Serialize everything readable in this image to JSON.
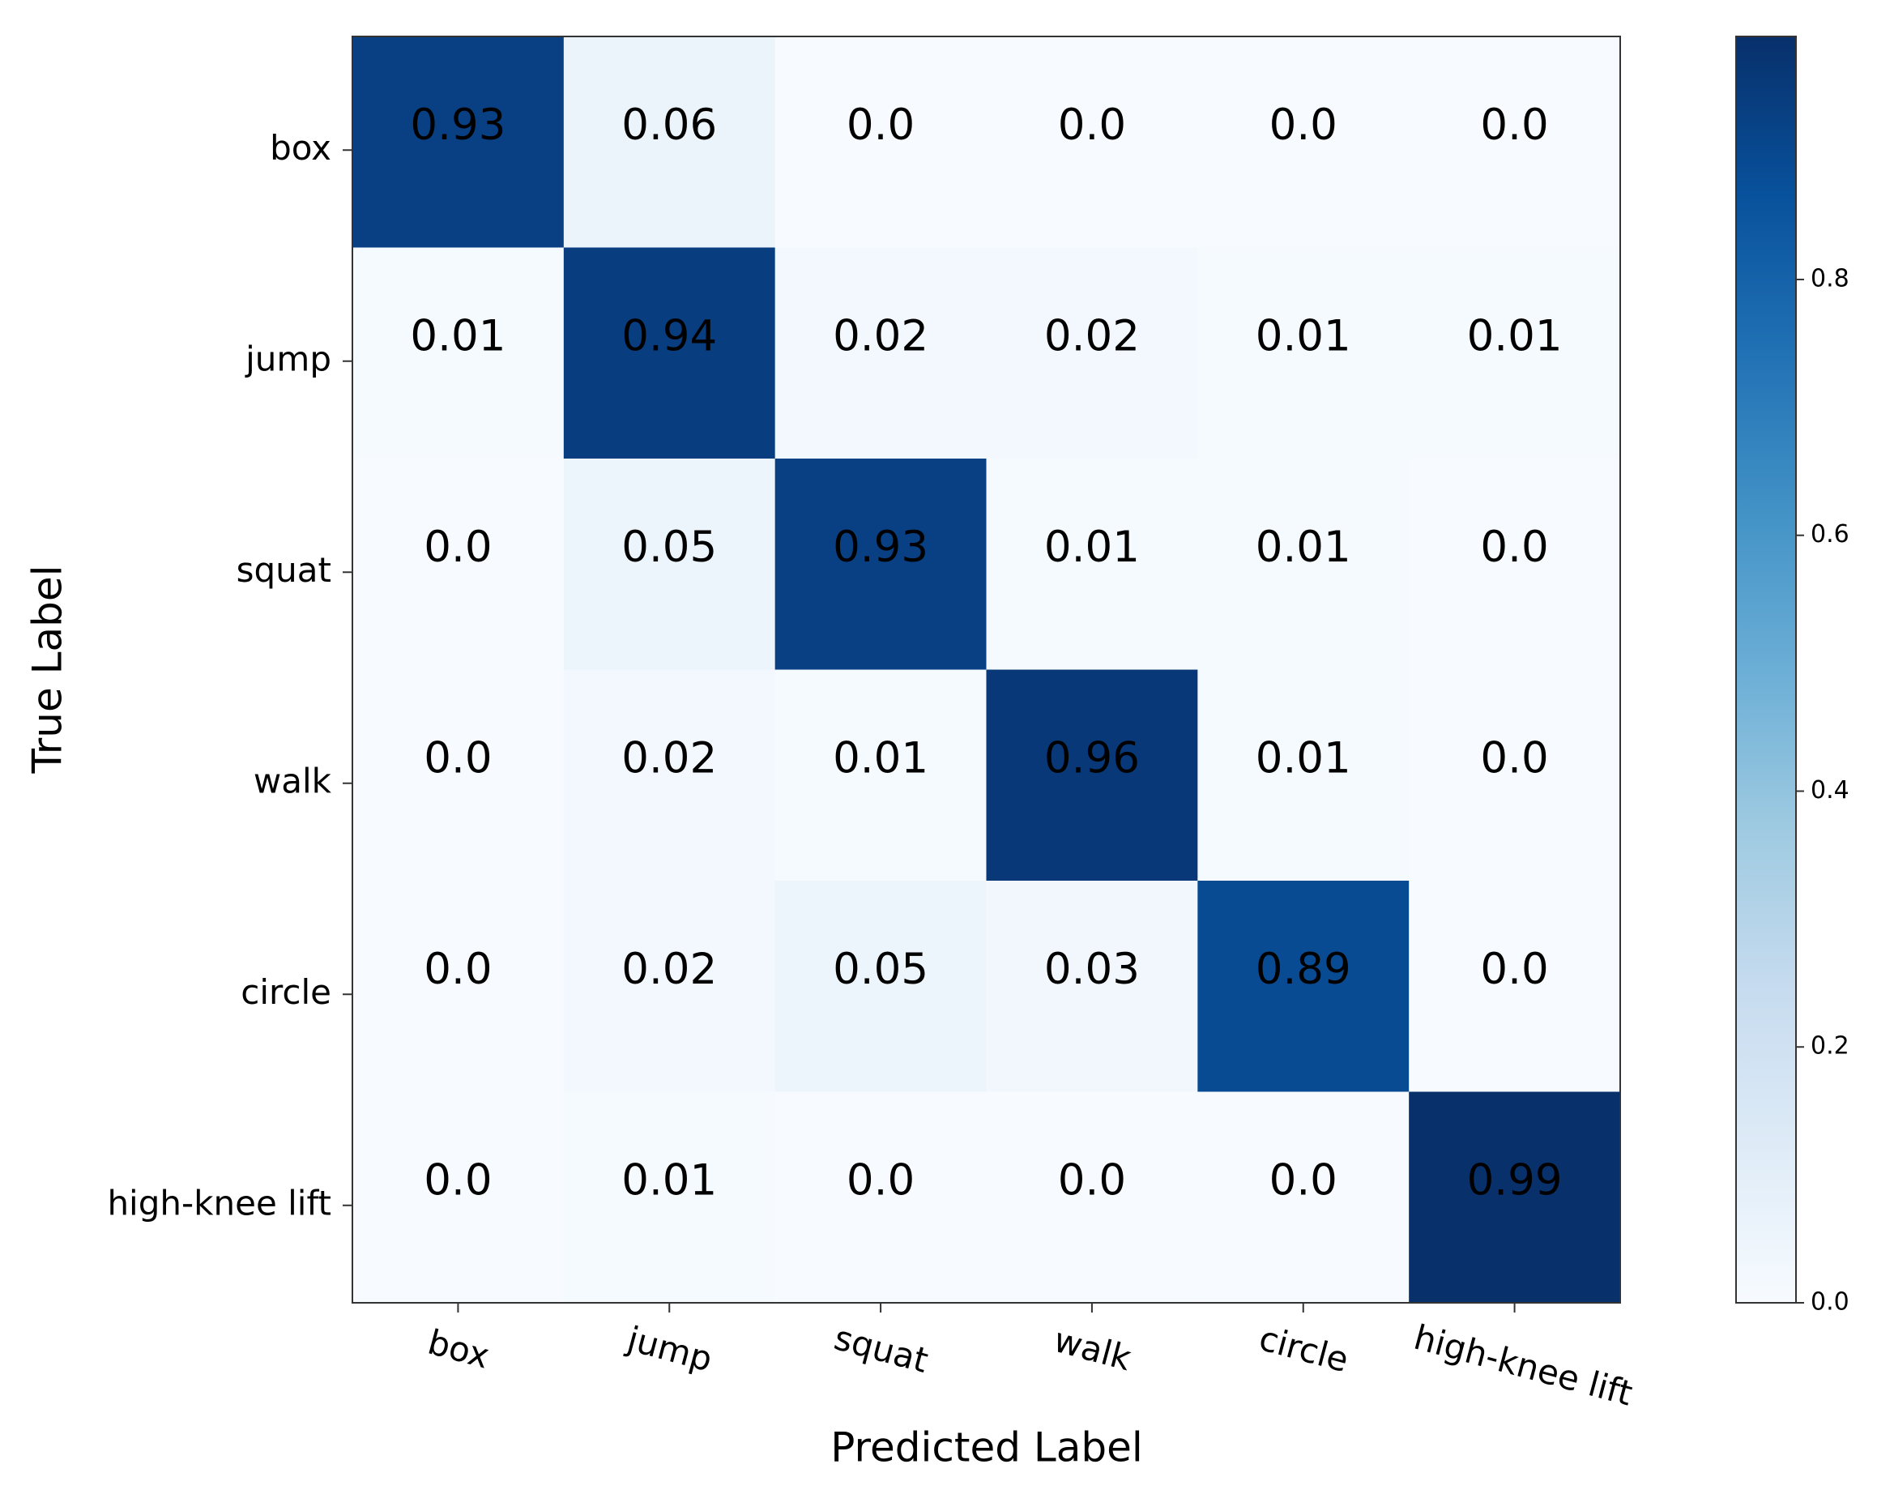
{
  "chart_data": {
    "type": "heatmap",
    "x_label": "Predicted Label",
    "y_label": "True Label",
    "x_categories": [
      "box",
      "jump",
      "squat",
      "walk",
      "circle",
      "high-knee lift"
    ],
    "y_categories": [
      "box",
      "jump",
      "squat",
      "walk",
      "circle",
      "high-knee lift"
    ],
    "values": [
      [
        0.93,
        0.06,
        0,
        0,
        0,
        0
      ],
      [
        0.01,
        0.94,
        0.02,
        0.02,
        0.01,
        0.01
      ],
      [
        0,
        0.05,
        0.93,
        0.01,
        0.01,
        0
      ],
      [
        0,
        0.02,
        0.01,
        0.96,
        0.01,
        0
      ],
      [
        0,
        0.02,
        0.05,
        0.03,
        0.89,
        0
      ],
      [
        0,
        0.01,
        0,
        0,
        0,
        0.99
      ]
    ],
    "value_labels": [
      [
        "0.93",
        "0.06",
        "0.0",
        "0.0",
        "0.0",
        "0.0"
      ],
      [
        "0.01",
        "0.94",
        "0.02",
        "0.02",
        "0.01",
        "0.01"
      ],
      [
        "0.0",
        "0.05",
        "0.93",
        "0.01",
        "0.01",
        "0.0"
      ],
      [
        "0.0",
        "0.02",
        "0.01",
        "0.96",
        "0.01",
        "0.0"
      ],
      [
        "0.0",
        "0.02",
        "0.05",
        "0.03",
        "0.89",
        "0.0"
      ],
      [
        "0.0",
        "0.01",
        "0.0",
        "0.0",
        "0.0",
        "0.99"
      ]
    ],
    "colormap": "Blues",
    "clim": [
      0,
      0.99
    ],
    "colorbar_ticks": [
      {
        "value": 0,
        "label": "0.0"
      },
      0.2,
      0.4,
      0.6,
      0.8
    ]
  }
}
